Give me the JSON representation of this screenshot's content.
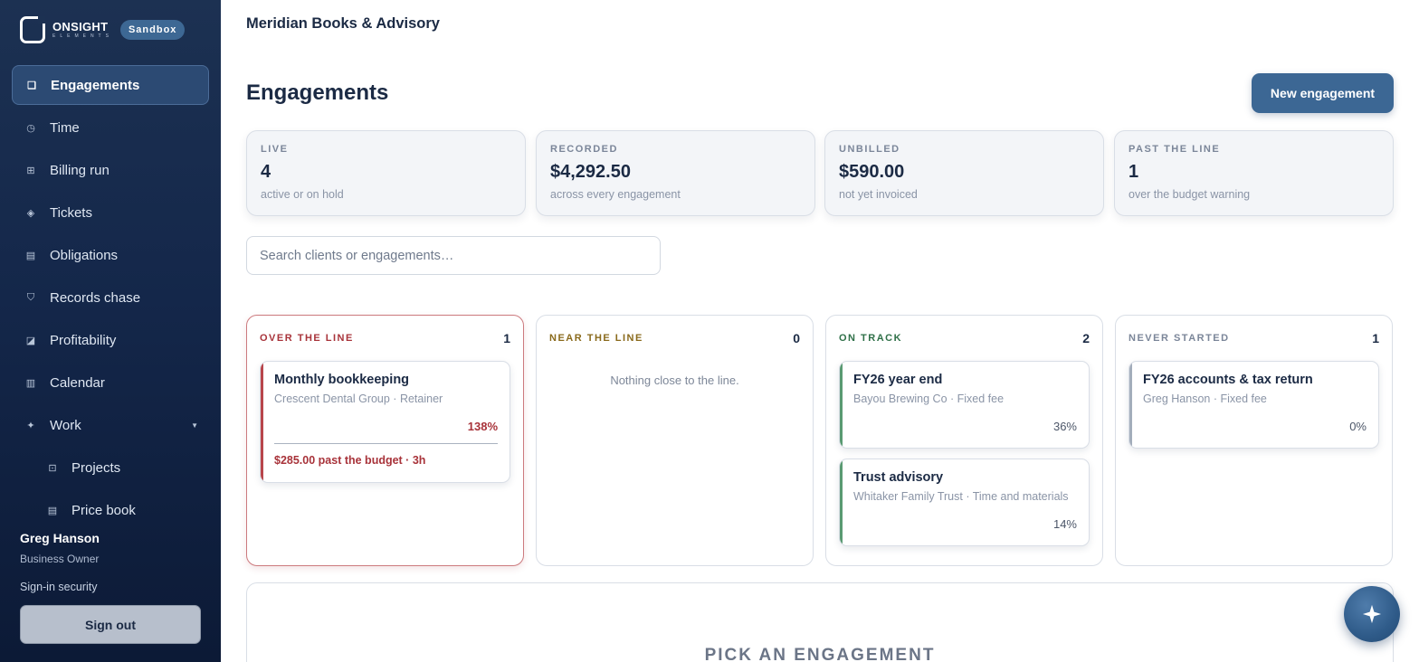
{
  "brand": {
    "name": "ONSIGHT",
    "sub": "ELEMENTS",
    "badge": "Sandbox"
  },
  "nav": {
    "items": [
      {
        "label": "Engagements",
        "icon": "engagements-icon",
        "glyph": "❏"
      },
      {
        "label": "Time",
        "icon": "clock-icon",
        "glyph": "◷"
      },
      {
        "label": "Billing run",
        "icon": "billing-icon",
        "glyph": "⊞"
      },
      {
        "label": "Tickets",
        "icon": "ticket-icon",
        "glyph": "◈"
      },
      {
        "label": "Obligations",
        "icon": "obligations-icon",
        "glyph": "▤"
      },
      {
        "label": "Records chase",
        "icon": "records-icon",
        "glyph": "⛉"
      },
      {
        "label": "Profitability",
        "icon": "chart-icon",
        "glyph": "◪"
      },
      {
        "label": "Calendar",
        "icon": "calendar-icon",
        "glyph": "▥"
      },
      {
        "label": "Work",
        "icon": "sparkle-icon",
        "glyph": "✦"
      },
      {
        "label": "Projects",
        "icon": "projects-icon",
        "glyph": "⊡"
      },
      {
        "label": "Price book",
        "icon": "price-book-icon",
        "glyph": "▤"
      }
    ]
  },
  "user": {
    "name": "Greg Hanson",
    "role": "Business Owner",
    "security": "Sign-in security",
    "signout": "Sign out"
  },
  "header": {
    "org": "Meridian Books & Advisory",
    "title": "Engagements",
    "new_button": "New engagement"
  },
  "stats": [
    {
      "label": "LIVE",
      "value": "4",
      "sub": "active or on hold"
    },
    {
      "label": "RECORDED",
      "value": "$4,292.50",
      "sub": "across every engagement"
    },
    {
      "label": "UNBILLED",
      "value": "$590.00",
      "sub": "not yet invoiced"
    },
    {
      "label": "PAST THE LINE",
      "value": "1",
      "sub": "over the budget warning"
    }
  ],
  "search": {
    "placeholder": "Search clients or engagements…",
    "value": ""
  },
  "columns": [
    {
      "title": "OVER THE LINE",
      "count": "1",
      "color": "#a8333a",
      "cards": [
        {
          "title": "Monthly bookkeeping",
          "sub": "Crescent Dental Group · Retainer",
          "pct": "138%",
          "warning": "$285.00 past the budget · 3h",
          "accent": "#b8454b"
        }
      ]
    },
    {
      "title": "NEAR THE LINE",
      "count": "0",
      "color": "#8a6a1c",
      "empty": "Nothing close to the line.",
      "cards": []
    },
    {
      "title": "ON TRACK",
      "count": "2",
      "color": "#2f7048",
      "cards": [
        {
          "title": "FY26 year end",
          "sub": "Bayou Brewing Co · Fixed fee",
          "pct": "36%",
          "accent": "#5a9a72"
        },
        {
          "title": "Trust advisory",
          "sub": "Whitaker Family Trust · Time and materials",
          "pct": "14%",
          "accent": "#5a9a72"
        }
      ]
    },
    {
      "title": "NEVER STARTED",
      "count": "1",
      "color": "#7b8699",
      "cards": [
        {
          "title": "FY26 accounts & tax return",
          "sub": "Greg Hanson · Fixed fee",
          "pct": "0%",
          "accent": "#a3adbb"
        }
      ]
    }
  ],
  "detail": {
    "prompt": "PICK AN ENGAGEMENT"
  },
  "fab": {
    "icon": "sparkle-icon"
  }
}
